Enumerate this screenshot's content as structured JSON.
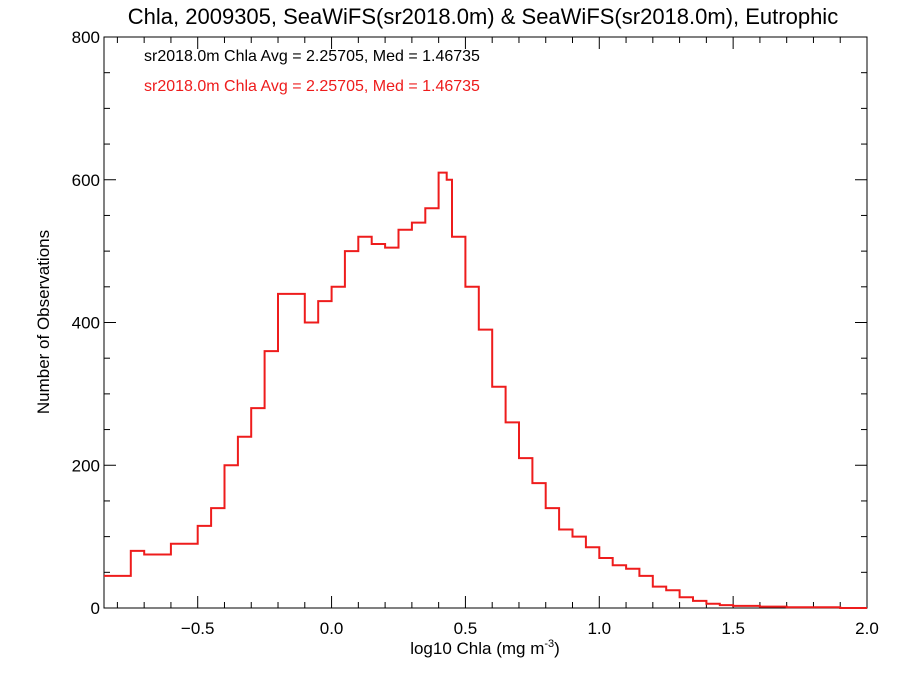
{
  "chart_data": {
    "type": "line",
    "title": "Chla, 2009305, SeaWiFS(sr2018.0m) & SeaWiFS(sr2018.0m), Eutrophic",
    "xlabel": "log10 Chla (mg m",
    "xlabel_superscript": "-3",
    "xlabel_suffix": ")",
    "ylabel": "Number of Observations",
    "xlim": [
      -0.85,
      2.0
    ],
    "ylim": [
      0,
      800
    ],
    "x_ticks": [
      -0.5,
      0.0,
      0.5,
      1.0,
      1.5,
      2.0
    ],
    "x_tick_labels": [
      "−0.5",
      "0.0",
      "0.5",
      "1.0",
      "1.5",
      "2.0"
    ],
    "y_ticks": [
      0,
      200,
      400,
      600,
      800
    ],
    "y_tick_labels": [
      "0",
      "200",
      "400",
      "600",
      "800"
    ],
    "grid": false,
    "legend_position": "top-left",
    "annotations": [
      {
        "text": "sr2018.0m Chla Avg = 2.25705, Med = 1.46735",
        "color": "#000000"
      },
      {
        "text": "sr2018.0m Chla Avg = 2.25705, Med = 1.46735",
        "color": "#ee1c1c"
      }
    ],
    "series": [
      {
        "color": "#ee1c1c",
        "step": true,
        "x": [
          -0.85,
          -0.75,
          -0.7,
          -0.6,
          -0.5,
          -0.45,
          -0.4,
          -0.35,
          -0.3,
          -0.25,
          -0.2,
          -0.15,
          -0.1,
          -0.05,
          0.0,
          0.05,
          0.1,
          0.15,
          0.2,
          0.25,
          0.3,
          0.35,
          0.4,
          0.43,
          0.45,
          0.5,
          0.55,
          0.6,
          0.65,
          0.7,
          0.75,
          0.8,
          0.85,
          0.9,
          0.95,
          1.0,
          1.05,
          1.1,
          1.15,
          1.2,
          1.25,
          1.3,
          1.35,
          1.4,
          1.45,
          1.5,
          1.6,
          1.7,
          1.8,
          1.9,
          2.0
        ],
        "y": [
          45,
          80,
          75,
          90,
          115,
          140,
          200,
          240,
          280,
          360,
          440,
          440,
          400,
          430,
          450,
          500,
          520,
          510,
          505,
          530,
          540,
          560,
          610,
          600,
          520,
          450,
          390,
          310,
          260,
          210,
          175,
          140,
          110,
          100,
          85,
          70,
          60,
          55,
          45,
          30,
          25,
          15,
          10,
          6,
          4,
          3,
          2,
          1,
          1,
          0,
          0
        ]
      }
    ]
  }
}
